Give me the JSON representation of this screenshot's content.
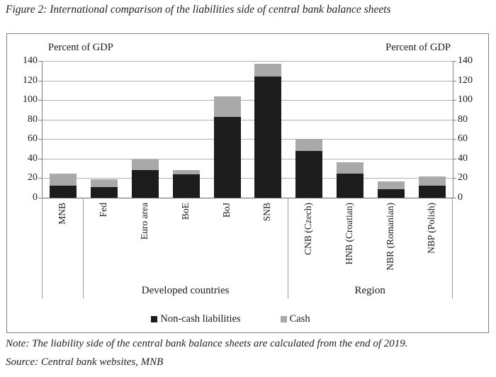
{
  "figure": {
    "title": "Figure 2: International comparison of the liabilities side of central bank balance sheets",
    "note": "Note: The liability side of the central bank balance sheets are calculated from the end of 2019.",
    "source": "Source: Central bank websites, MNB"
  },
  "chart_data": {
    "type": "bar",
    "stacked": true,
    "title": "",
    "ylabel_left": "Percent of GDP",
    "ylabel_right": "Percent of GDP",
    "ylim": [
      0,
      140
    ],
    "ytick_step": 20,
    "grid": true,
    "legend_position": "bottom-center",
    "categories": [
      "MNB",
      "Fed",
      "Euro area",
      "BoE",
      "BoJ",
      "SNB",
      "CNB (Czech)",
      "HNB (Croatian)",
      "NBR (Romanian)",
      "NBP (Polish)"
    ],
    "series": [
      {
        "name": "Non-cash liabilities",
        "color": "#1c1c1c",
        "values": [
          12,
          11,
          28,
          24,
          83,
          124,
          48,
          25,
          9,
          12
        ]
      },
      {
        "name": "Cash",
        "color": "#a9a9a9",
        "values": [
          13,
          8,
          11,
          4,
          21,
          13,
          12,
          11,
          8,
          10
        ]
      }
    ],
    "totals": [
      25,
      19,
      39,
      28,
      104,
      137,
      60,
      36,
      17,
      22
    ],
    "groups": [
      {
        "label": "Developed countries",
        "from_index": 1,
        "to_index": 5
      },
      {
        "label": "Region",
        "from_index": 6,
        "to_index": 9
      }
    ],
    "group_boundaries_at_category_index": [
      0,
      1,
      6,
      10
    ],
    "colors": {
      "gridline": "#b3b3b3",
      "axis": "#808080",
      "frame": "#7f7f7f",
      "text": "#1a1a1a"
    }
  }
}
